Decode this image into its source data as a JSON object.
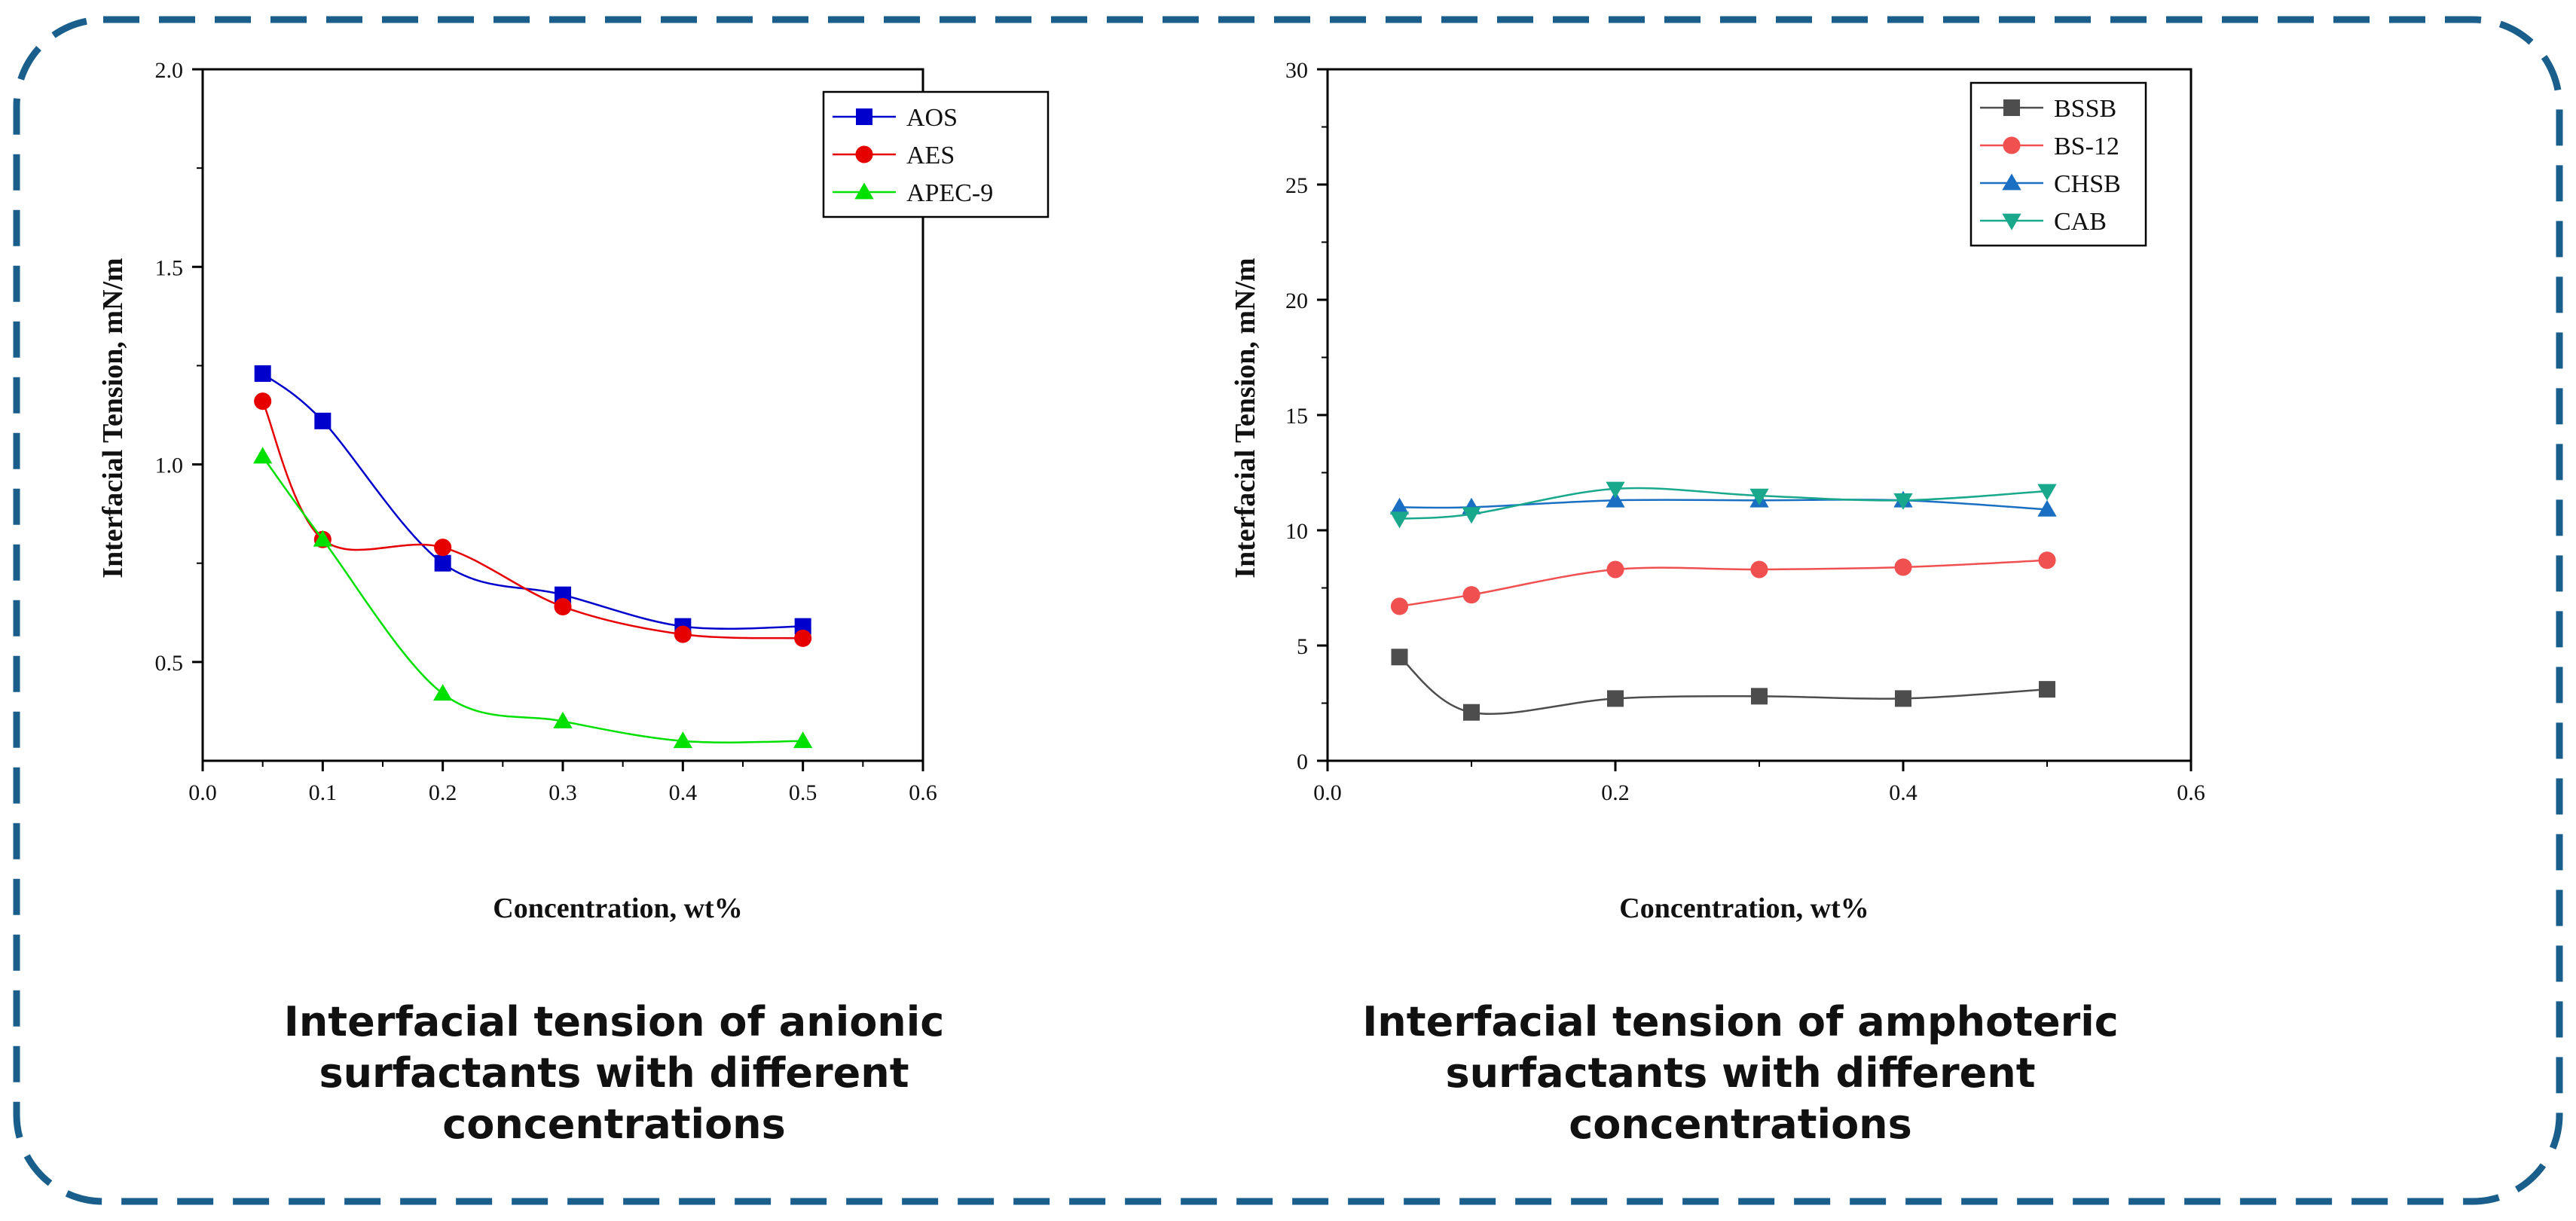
{
  "colors": {
    "frame": "#1a5e8c",
    "axis": "#000000",
    "AOS": "#0000cc",
    "AES": "#e60000",
    "APEC-9": "#00e000",
    "BSSB": "#4d4d4d",
    "BS-12": "#f05050",
    "CHSB": "#1a6fc2",
    "CAB": "#1aa88c"
  },
  "chart_data": [
    {
      "type": "line",
      "title": "",
      "xlabel": "Concentration, wt%",
      "ylabel": "Interfacial Tension, mN/m",
      "xlim": [
        0.0,
        0.6
      ],
      "ylim": [
        0.25,
        2.0
      ],
      "xticks": [
        0.0,
        0.1,
        0.2,
        0.3,
        0.4,
        0.5,
        0.6
      ],
      "xtick_labels": [
        "0.0",
        "0.1",
        "0.2",
        "0.3",
        "0.4",
        "0.5",
        "0.6"
      ],
      "yticks": [
        0.5,
        1.0,
        1.5,
        2.0
      ],
      "ytick_labels": [
        "0.5",
        "1.0",
        "1.5",
        "2.0"
      ],
      "legend_position": "top-right",
      "x": [
        0.05,
        0.1,
        0.2,
        0.3,
        0.4,
        0.5
      ],
      "series": [
        {
          "name": "AOS",
          "marker": "square",
          "values": [
            1.23,
            1.11,
            0.75,
            0.67,
            0.59,
            0.59
          ]
        },
        {
          "name": "AES",
          "marker": "circle",
          "values": [
            1.16,
            0.81,
            0.79,
            0.64,
            0.57,
            0.56
          ]
        },
        {
          "name": "APEC-9",
          "marker": "triangle-up",
          "values": [
            1.02,
            0.81,
            0.42,
            0.35,
            0.3,
            0.3
          ]
        }
      ],
      "caption": [
        "Interfacial tension of anionic",
        "surfactants with different",
        "concentrations"
      ]
    },
    {
      "type": "line",
      "title": "",
      "xlabel": "Concentration, wt%",
      "ylabel": "Interfacial Tension, mN/m",
      "xlim": [
        0.0,
        0.6
      ],
      "ylim": [
        0,
        30
      ],
      "xticks": [
        0.0,
        0.2,
        0.4,
        0.6
      ],
      "xtick_labels": [
        "0.0",
        "0.2",
        "0.4",
        "0.6"
      ],
      "yticks": [
        0,
        5,
        10,
        15,
        20,
        25,
        30
      ],
      "ytick_labels": [
        "0",
        "5",
        "10",
        "15",
        "20",
        "25",
        "30"
      ],
      "legend_position": "top-right",
      "x": [
        0.05,
        0.1,
        0.2,
        0.3,
        0.4,
        0.5
      ],
      "series": [
        {
          "name": "BSSB",
          "marker": "square",
          "values": [
            4.5,
            2.1,
            2.7,
            2.8,
            2.7,
            3.1
          ]
        },
        {
          "name": "BS-12",
          "marker": "circle",
          "values": [
            6.7,
            7.2,
            8.3,
            8.3,
            8.4,
            8.7
          ]
        },
        {
          "name": "CHSB",
          "marker": "triangle-up",
          "values": [
            11.0,
            11.0,
            11.3,
            11.3,
            11.3,
            10.9
          ]
        },
        {
          "name": "CAB",
          "marker": "triangle-down",
          "values": [
            10.5,
            10.7,
            11.8,
            11.5,
            11.3,
            11.7
          ]
        }
      ],
      "caption": [
        "Interfacial tension of amphoteric",
        "surfactants with different",
        "concentrations"
      ]
    }
  ]
}
